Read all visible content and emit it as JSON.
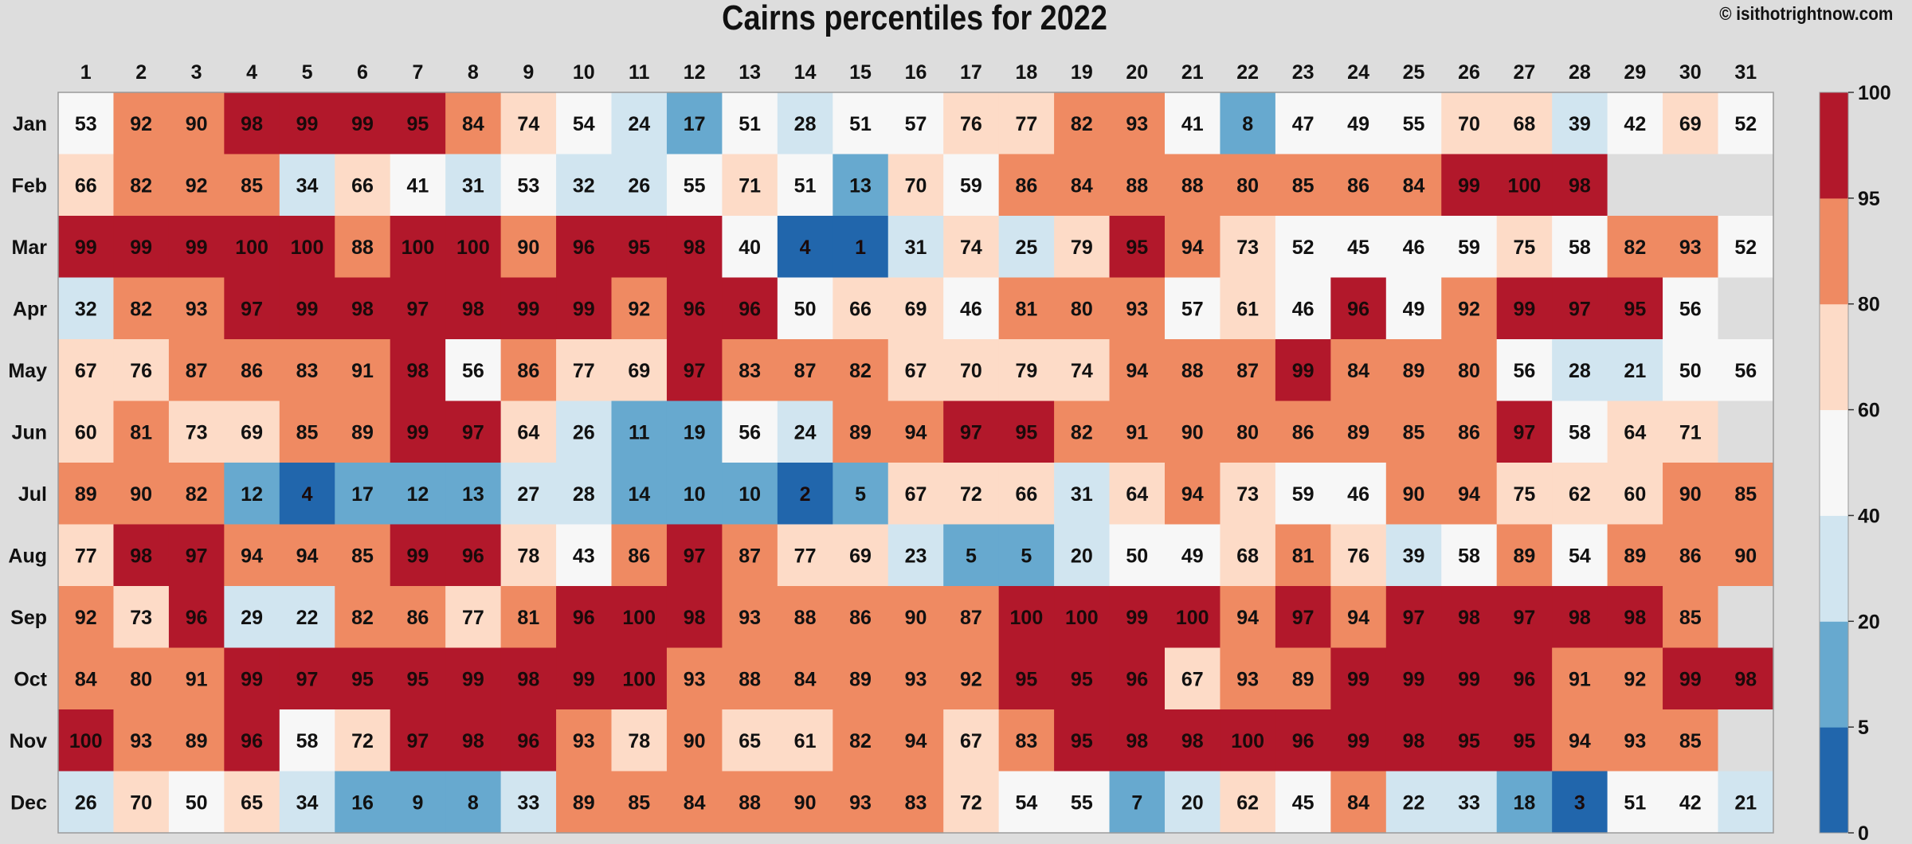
{
  "title": "Cairns percentiles for 2022",
  "credit": "© isithotrightnow.com",
  "chart_data": {
    "type": "heatmap",
    "title": "Cairns percentiles for 2022",
    "x_categories": [
      "1",
      "2",
      "3",
      "4",
      "5",
      "6",
      "7",
      "8",
      "9",
      "10",
      "11",
      "12",
      "13",
      "14",
      "15",
      "16",
      "17",
      "18",
      "19",
      "20",
      "21",
      "22",
      "23",
      "24",
      "25",
      "26",
      "27",
      "28",
      "29",
      "30",
      "31"
    ],
    "y_categories": [
      "Jan",
      "Feb",
      "Mar",
      "Apr",
      "May",
      "Jun",
      "Jul",
      "Aug",
      "Sep",
      "Oct",
      "Nov",
      "Dec"
    ],
    "values": [
      [
        53,
        92,
        90,
        98,
        99,
        99,
        95,
        84,
        74,
        54,
        24,
        17,
        51,
        28,
        51,
        57,
        76,
        77,
        82,
        93,
        41,
        8,
        47,
        49,
        55,
        70,
        68,
        39,
        42,
        69,
        52
      ],
      [
        66,
        82,
        92,
        85,
        34,
        66,
        41,
        31,
        53,
        32,
        26,
        55,
        71,
        51,
        13,
        70,
        59,
        86,
        84,
        88,
        88,
        80,
        85,
        86,
        84,
        99,
        100,
        98,
        null,
        null,
        null
      ],
      [
        99,
        99,
        99,
        100,
        100,
        88,
        100,
        100,
        90,
        96,
        95,
        98,
        40,
        4,
        1,
        31,
        74,
        25,
        79,
        95,
        94,
        73,
        52,
        45,
        46,
        59,
        75,
        58,
        82,
        93,
        52
      ],
      [
        32,
        82,
        93,
        97,
        99,
        98,
        97,
        98,
        99,
        99,
        92,
        96,
        96,
        50,
        66,
        69,
        46,
        81,
        80,
        93,
        57,
        61,
        46,
        96,
        49,
        92,
        99,
        97,
        95,
        56,
        null
      ],
      [
        67,
        76,
        87,
        86,
        83,
        91,
        98,
        56,
        86,
        77,
        69,
        97,
        83,
        87,
        82,
        67,
        70,
        79,
        74,
        94,
        88,
        87,
        99,
        84,
        89,
        80,
        56,
        28,
        21,
        50,
        56
      ],
      [
        60,
        81,
        73,
        69,
        85,
        89,
        99,
        97,
        64,
        26,
        11,
        19,
        56,
        24,
        89,
        94,
        97,
        95,
        82,
        91,
        90,
        80,
        86,
        89,
        85,
        86,
        97,
        58,
        64,
        71,
        null
      ],
      [
        89,
        90,
        82,
        12,
        4,
        17,
        12,
        13,
        27,
        28,
        14,
        10,
        10,
        2,
        5,
        67,
        72,
        66,
        31,
        64,
        94,
        73,
        59,
        46,
        90,
        94,
        75,
        62,
        60,
        90,
        85
      ],
      [
        77,
        98,
        97,
        94,
        94,
        85,
        99,
        96,
        78,
        43,
        86,
        97,
        87,
        77,
        69,
        23,
        5,
        5,
        20,
        50,
        49,
        68,
        81,
        76,
        39,
        58,
        89,
        54,
        89,
        86,
        90
      ],
      [
        92,
        73,
        96,
        29,
        22,
        82,
        86,
        77,
        81,
        96,
        100,
        98,
        93,
        88,
        86,
        90,
        87,
        100,
        100,
        99,
        100,
        94,
        97,
        94,
        97,
        98,
        97,
        98,
        98,
        85,
        null
      ],
      [
        84,
        80,
        91,
        99,
        97,
        95,
        95,
        99,
        98,
        99,
        100,
        93,
        88,
        84,
        89,
        93,
        92,
        95,
        95,
        96,
        67,
        93,
        89,
        99,
        99,
        99,
        96,
        91,
        92,
        99,
        98
      ],
      [
        100,
        93,
        89,
        96,
        58,
        72,
        97,
        98,
        96,
        93,
        78,
        90,
        65,
        61,
        82,
        94,
        67,
        83,
        95,
        98,
        98,
        100,
        96,
        99,
        98,
        95,
        95,
        94,
        93,
        85,
        null
      ],
      [
        26,
        70,
        50,
        65,
        34,
        16,
        9,
        8,
        33,
        89,
        85,
        84,
        88,
        90,
        93,
        83,
        72,
        54,
        55,
        7,
        20,
        62,
        45,
        84,
        22,
        33,
        18,
        3,
        51,
        42,
        21
      ]
    ],
    "color_scale": {
      "bins": [
        {
          "from": 0,
          "to": 5,
          "color": "#2166ac"
        },
        {
          "from": 5,
          "to": 20,
          "color": "#67a9cf"
        },
        {
          "from": 20,
          "to": 40,
          "color": "#d1e5f0"
        },
        {
          "from": 40,
          "to": 60,
          "color": "#f7f7f7"
        },
        {
          "from": 60,
          "to": 80,
          "color": "#fddbc7"
        },
        {
          "from": 80,
          "to": 95,
          "color": "#ef8a62"
        },
        {
          "from": 95,
          "to": 100,
          "color": "#b2182b"
        }
      ],
      "ticks": [
        0,
        5,
        20,
        40,
        60,
        80,
        95,
        100
      ]
    },
    "missing_color": "#dddddd",
    "legend_position": "right"
  }
}
